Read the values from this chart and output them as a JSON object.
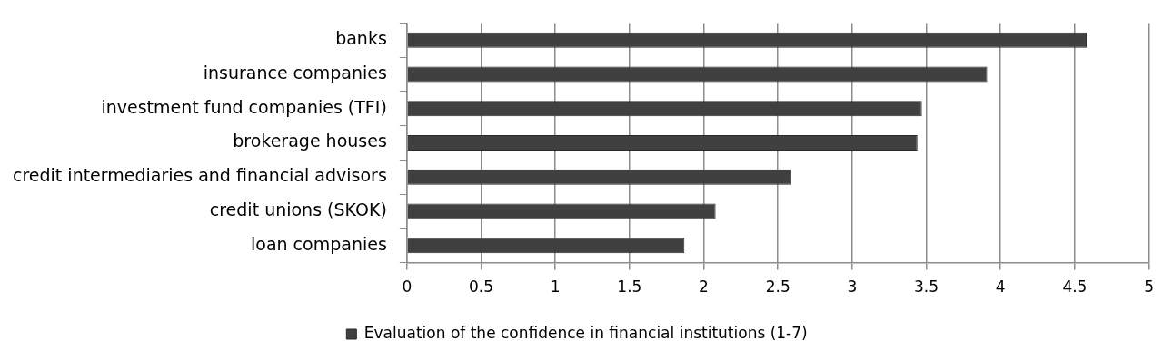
{
  "chart_data": {
    "type": "bar",
    "orientation": "horizontal",
    "categories": [
      "banks",
      "insurance companies",
      "investment fund companies (TFI)",
      "brokerage houses",
      "credit intermediaries and financial advisors",
      "credit unions (SKOK)",
      "loan companies"
    ],
    "series": [
      {
        "name": "Evaluation of the confidence in financial institutions (1-7)",
        "color": "#404040",
        "values": [
          4.58,
          3.91,
          3.47,
          3.44,
          2.59,
          2.08,
          1.87
        ]
      }
    ],
    "xlim": [
      0,
      5
    ],
    "xticks": [
      0,
      0.5,
      1,
      1.5,
      2,
      2.5,
      3,
      3.5,
      4,
      4.5,
      5
    ],
    "grid": "x",
    "legend": "bottom"
  }
}
